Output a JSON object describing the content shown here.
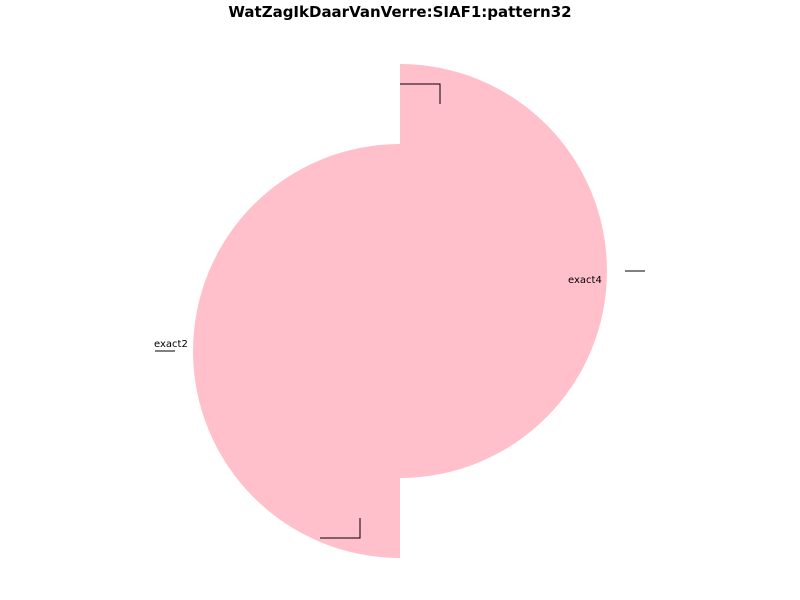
{
  "chart_data": {
    "type": "pie",
    "title": "WatZagIkDaarVanVerre:SIAF1:pattern32",
    "slices": [
      {
        "label": "exact2",
        "value": 1,
        "color": "#ffc0cb"
      },
      {
        "label": "",
        "value": 0,
        "color": "#ffc0cb"
      },
      {
        "label": "exact4",
        "value": 1,
        "color": "#ffc0cb"
      },
      {
        "label": "",
        "value": 0,
        "color": "#ffc0cb"
      }
    ],
    "legend": "none"
  }
}
